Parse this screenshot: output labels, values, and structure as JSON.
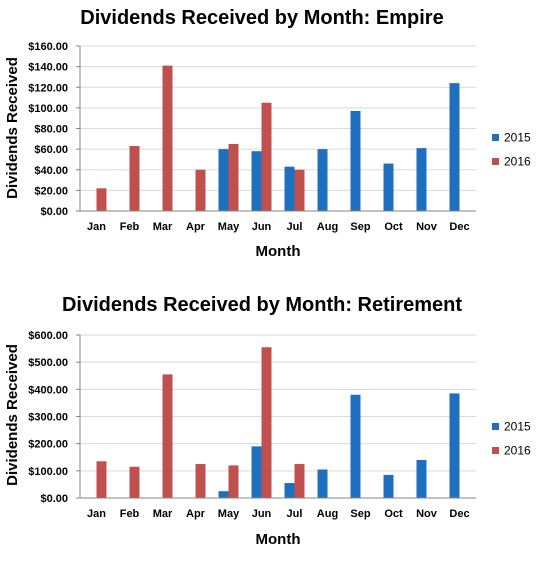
{
  "colors": {
    "2015": "#1f6fbf",
    "2016": "#c0504d"
  },
  "chart_data": [
    {
      "type": "bar",
      "title": "Dividends Received by Month: Empire",
      "xlabel": "Month",
      "ylabel": "Dividends Received",
      "categories": [
        "Jan",
        "Feb",
        "Mar",
        "Apr",
        "May",
        "Jun",
        "Jul",
        "Aug",
        "Sep",
        "Oct",
        "Nov",
        "Dec"
      ],
      "ylim": [
        0,
        160
      ],
      "yticks": [
        0,
        20,
        40,
        60,
        80,
        100,
        120,
        140,
        160
      ],
      "ytick_labels": [
        "$0.00",
        "$20.00",
        "$40.00",
        "$60.00",
        "$80.00",
        "$100.00",
        "$120.00",
        "$140.00",
        "$160.00"
      ],
      "grid": true,
      "legend": "right",
      "series": [
        {
          "name": "2015",
          "values": [
            0,
            0,
            0,
            0,
            60,
            58,
            43,
            60,
            97,
            46,
            61,
            124
          ]
        },
        {
          "name": "2016",
          "values": [
            22,
            63,
            141,
            40,
            65,
            105,
            40,
            0,
            0,
            0,
            0,
            0
          ]
        }
      ]
    },
    {
      "type": "bar",
      "title": "Dividends Received by Month: Retirement",
      "xlabel": "Month",
      "ylabel": "Dividends Received",
      "categories": [
        "Jan",
        "Feb",
        "Mar",
        "Apr",
        "May",
        "Jun",
        "Jul",
        "Aug",
        "Sep",
        "Oct",
        "Nov",
        "Dec"
      ],
      "ylim": [
        0,
        600
      ],
      "yticks": [
        0,
        100,
        200,
        300,
        400,
        500,
        600
      ],
      "ytick_labels": [
        "$0.00",
        "$100.00",
        "$200.00",
        "$300.00",
        "$400.00",
        "$500.00",
        "$600.00"
      ],
      "grid": true,
      "legend": "right",
      "series": [
        {
          "name": "2015",
          "values": [
            0,
            0,
            0,
            0,
            25,
            190,
            55,
            105,
            380,
            85,
            140,
            385
          ]
        },
        {
          "name": "2016",
          "values": [
            135,
            115,
            455,
            125,
            120,
            555,
            125,
            0,
            0,
            0,
            0,
            0
          ]
        }
      ]
    }
  ]
}
